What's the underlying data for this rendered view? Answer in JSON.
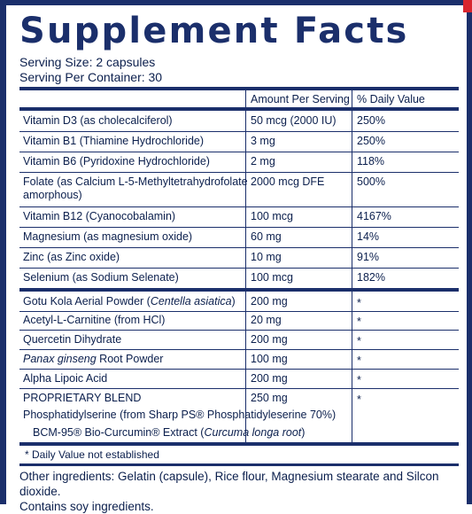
{
  "title": "Supplement Facts",
  "serving_size": "Serving Size: 2 capsules",
  "servings_per_container": "Serving Per Container: 30",
  "header": {
    "amount": "Amount Per Serving",
    "dv": "% Daily Value"
  },
  "vitamins": [
    {
      "name": "Vitamin D3 (as cholecalciferol)",
      "amount": "50 mcg (2000 IU)",
      "dv": "250%"
    },
    {
      "name": "Vitamin B1 (Thiamine Hydrochloride)",
      "amount": "3 mg",
      "dv": "250%"
    },
    {
      "name": "Vitamin B6 (Pyridoxine Hydrochloride)",
      "amount": "2 mg",
      "dv": "118%"
    },
    {
      "name": "Folate (as Calcium L-5-Methyltetrahydrofolate",
      "name2": "amorphous)",
      "amount": "2000 mcg DFE",
      "dv": "500%"
    },
    {
      "name": "Vitamin B12 (Cyanocobalamin)",
      "amount": "100 mcg",
      "dv": "4167%"
    },
    {
      "name": "Magnesium (as magnesium oxide)",
      "amount": "60 mg",
      "dv": "14%"
    },
    {
      "name": "Zinc (as Zinc oxide)",
      "amount": "10 mg",
      "dv": "91%"
    },
    {
      "name": "Selenium (as Sodium Selenate)",
      "amount": "100 mcg",
      "dv": "182%"
    }
  ],
  "others": [
    {
      "name": "Gotu Kola Aerial Powder (",
      "italic": "Centella asiatica",
      "after": ")",
      "amount": "200 mg",
      "dv": "*"
    },
    {
      "name": "Acetyl-L-Carnitine (from HCl)",
      "amount": "20 mg",
      "dv": "*"
    },
    {
      "name": "Quercetin Dihydrate",
      "amount": "200 mg",
      "dv": "*"
    },
    {
      "italic": "Panax ginseng",
      "name": " Root Powder",
      "amount": "100 mg",
      "dv": "*"
    },
    {
      "name": "Alpha Lipoic Acid",
      "amount": "200 mg",
      "dv": "*"
    }
  ],
  "blend": {
    "name": "PROPRIETARY BLEND",
    "amount": "250 mg",
    "dv": "*",
    "line1": "Phosphatidylserine (from Sharp PS® Phosphatidyleserine 70%)",
    "line2_pre": "BCM-95® Bio-Curcumin® Extract (",
    "line2_italic": "Curcuma longa root",
    "line2_post": ")"
  },
  "dv_note": "* Daily Value not established",
  "other_ingredients": "Other ingredients: Gelatin (capsule), Rice flour, Magnesium stearate and Silcon dioxide.",
  "contains": "Contains soy ingredients.",
  "colors": {
    "navy": "#1b2f6b",
    "text": "#0b1f4d",
    "accent": "#d8262e"
  }
}
